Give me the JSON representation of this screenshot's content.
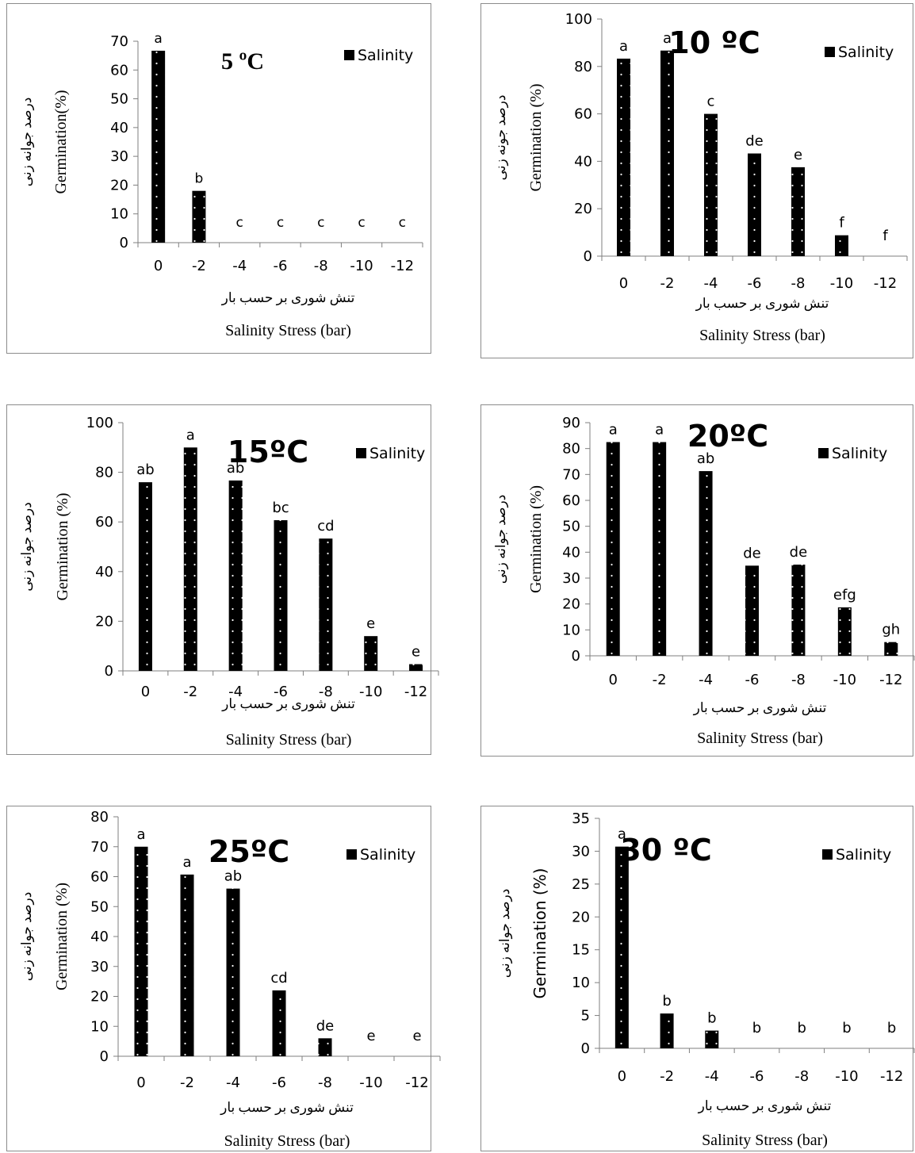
{
  "chart_data": [
    {
      "type": "bar",
      "title": "5 ºC",
      "legend": "Salinity",
      "ylabel_fa": "درصد جوانه زنی",
      "ylabel_en": "Germination(%)",
      "xlabel_fa": "تنش شوری بر حسب بار",
      "xlabel_en": "Salinity Stress (bar)",
      "categories": [
        "0",
        "-2",
        "-4",
        "-6",
        "-8",
        "-10",
        "-12"
      ],
      "values": [
        66.7,
        18,
        0,
        0,
        0,
        0,
        0
      ],
      "letters": [
        "a",
        "b",
        "c",
        "c",
        "c",
        "c",
        "c"
      ],
      "yticks": [
        "0",
        "10",
        "20",
        "30",
        "40",
        "50",
        "60",
        "70"
      ],
      "ylim": [
        0,
        70
      ]
    },
    {
      "type": "bar",
      "title": "10 ºC",
      "legend": "Salinity",
      "ylabel_fa": "درصد جونه زنی",
      "ylabel_en": "Germination (%)",
      "xlabel_fa": "تنش شوری بر حسب بار",
      "xlabel_en": "Salinity Stress (bar)",
      "categories": [
        "0",
        "-2",
        "-4",
        "-6",
        "-8",
        "-10",
        "-12"
      ],
      "values": [
        83.3,
        86.7,
        60,
        43.3,
        37.5,
        8.8,
        0
      ],
      "letters": [
        "a",
        "a",
        "c",
        "de",
        "e",
        "f",
        "f"
      ],
      "yticks": [
        "0",
        "20",
        "40",
        "60",
        "80",
        "100"
      ],
      "ylim": [
        0,
        100
      ]
    },
    {
      "type": "bar",
      "title": "15ºC",
      "legend": "Salinity",
      "ylabel_fa": "درصد جوانه زنی",
      "ylabel_en": "Germination (%)",
      "xlabel_fa": "تنش شوری بر حسب بار",
      "xlabel_en": "Salinity Stress (bar)",
      "categories": [
        "0",
        "-2",
        "-4",
        "-6",
        "-8",
        "-10",
        "-12"
      ],
      "values": [
        76,
        90,
        76.7,
        60.7,
        53.3,
        14,
        2.7
      ],
      "letters": [
        "ab",
        "a",
        "ab",
        "bc",
        "cd",
        "e",
        "e"
      ],
      "yticks": [
        "0",
        "20",
        "40",
        "60",
        "80",
        "100"
      ],
      "ylim": [
        0,
        100
      ]
    },
    {
      "type": "bar",
      "title": "20ºC",
      "legend": "Salinity",
      "ylabel_fa": "درصد جوانه زنی",
      "ylabel_en": "Germination (%)",
      "xlabel_fa": "تنش شوری بر حسب بار",
      "xlabel_en": "Salinity Stress (bar)",
      "categories": [
        "0",
        "-2",
        "-4",
        "-6",
        "-8",
        "-10",
        "-12"
      ],
      "values": [
        82.5,
        82.5,
        71.3,
        34.8,
        35.2,
        18.7,
        5.3
      ],
      "letters": [
        "a",
        "a",
        "ab",
        "de",
        "de",
        "efg",
        "gh"
      ],
      "yticks": [
        "0",
        "10",
        "20",
        "30",
        "40",
        "50",
        "60",
        "70",
        "80",
        "90"
      ],
      "ylim": [
        0,
        90
      ]
    },
    {
      "type": "bar",
      "title": "25ºC",
      "legend": "Salinity",
      "ylabel_fa": "درصد جوانه زنی",
      "ylabel_en": "Germination (%)",
      "xlabel_fa": "تنش شوری بر حسب بار",
      "xlabel_en": "Salinity Stress (bar)",
      "categories": [
        "0",
        "-2",
        "-4",
        "-6",
        "-8",
        "-10",
        "-12"
      ],
      "values": [
        70,
        60.7,
        56,
        22,
        6,
        0,
        0
      ],
      "letters": [
        "a",
        "a",
        "ab",
        "cd",
        "de",
        "e",
        "e"
      ],
      "yticks": [
        "0",
        "10",
        "20",
        "30",
        "40",
        "50",
        "60",
        "70",
        "80"
      ],
      "ylim": [
        0,
        80
      ]
    },
    {
      "type": "bar",
      "title": "30 ºC",
      "legend": "Salinity",
      "ylabel_fa": "درصد جوانه زنی",
      "ylabel_en": "Germination (%)",
      "xlabel_fa": "تنش شوری بر حسب بار",
      "xlabel_en": "Salinity Stress (bar)",
      "categories": [
        "0",
        "-2",
        "-4",
        "-6",
        "-8",
        "-10",
        "-12"
      ],
      "values": [
        30.7,
        5.3,
        2.7,
        0,
        0,
        0,
        0
      ],
      "letters": [
        "a",
        "b",
        "b",
        "b",
        "b",
        "b",
        "b"
      ],
      "yticks": [
        "0",
        "5",
        "10",
        "15",
        "20",
        "25",
        "30",
        "35"
      ],
      "ylim": [
        0,
        35
      ]
    }
  ]
}
